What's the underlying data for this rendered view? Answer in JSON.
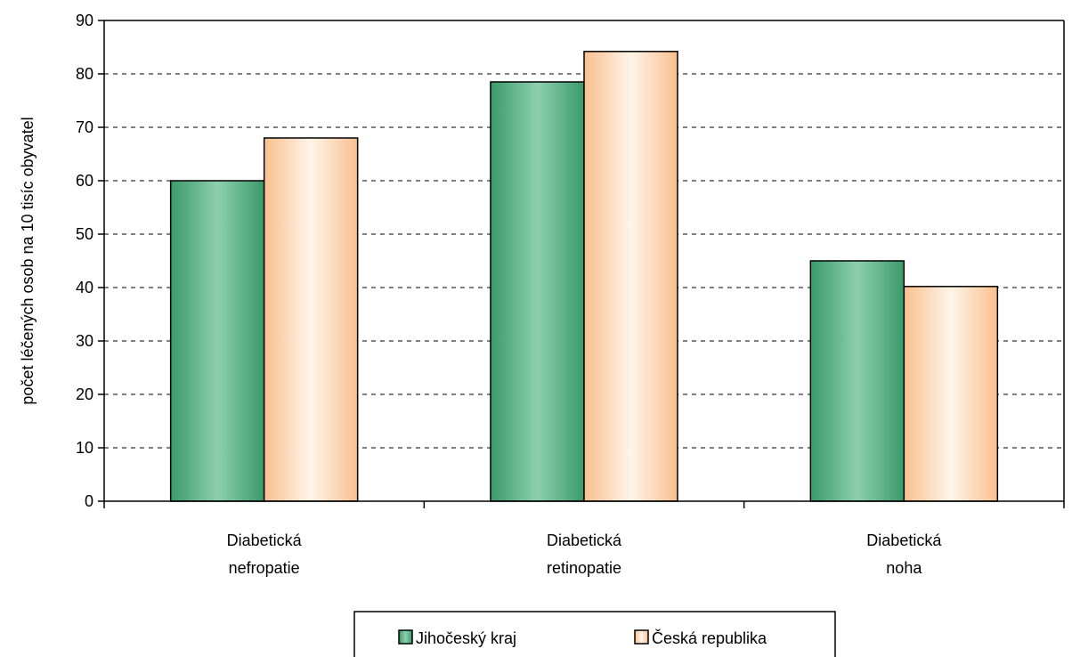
{
  "chart_data": {
    "type": "bar",
    "categories": [
      [
        "Diabetická",
        "nefropatie"
      ],
      [
        "Diabetická",
        "retinopatie"
      ],
      [
        "Diabetická",
        "noha"
      ]
    ],
    "series": [
      {
        "name": "Jihočeský kraj",
        "values": [
          60,
          78.5,
          45
        ],
        "color": "#3a9a6a",
        "color_light": "#8ecfae"
      },
      {
        "name": "Česká republika",
        "values": [
          68,
          84.2,
          40.2
        ],
        "color": "#f9c08e",
        "color_light": "#fff4ea"
      }
    ],
    "ylabel": "počet léčených osob na 10 tisíc obyvatel",
    "xlabel": "",
    "ylim": [
      0,
      90
    ],
    "yticks": [
      0,
      10,
      20,
      30,
      40,
      50,
      60,
      70,
      80,
      90
    ],
    "grid": true,
    "legend_position": "bottom-center"
  }
}
